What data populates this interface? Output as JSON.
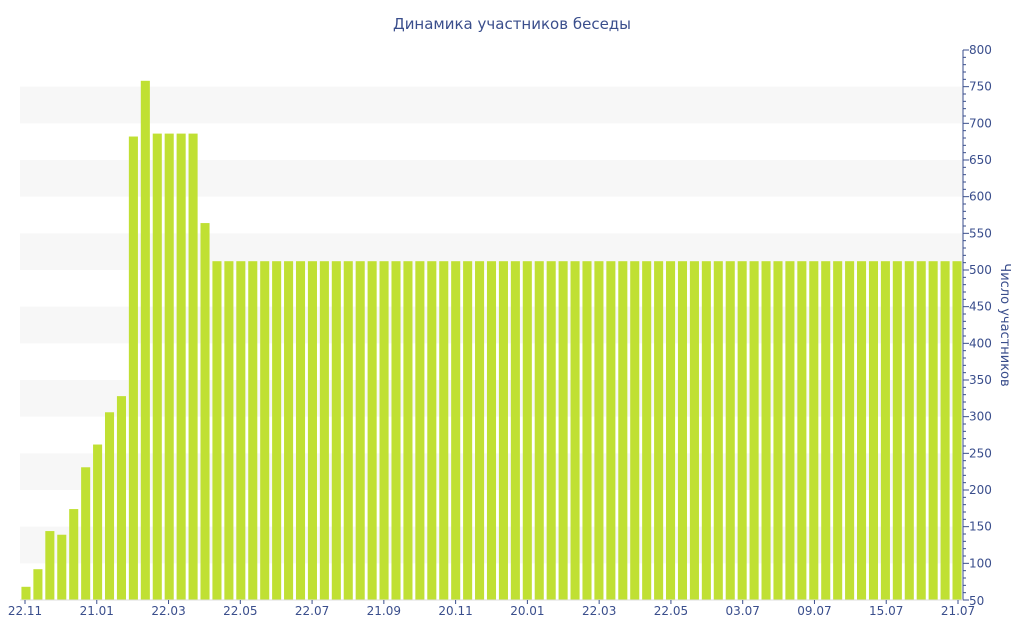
{
  "chart_data": {
    "type": "bar",
    "title": "Динамика участников беседы",
    "xlabel": "",
    "ylabel": "Число участников",
    "ylim": [
      50,
      800
    ],
    "yticks": [
      100,
      150,
      200,
      250,
      300,
      350,
      400,
      450,
      500,
      550,
      600,
      650,
      700,
      750,
      800
    ],
    "ytick_extra_label": "50",
    "xtick_labels": [
      "22.11",
      "21.01",
      "22.03",
      "22.05",
      "22.07",
      "21.09",
      "20.11",
      "20.01",
      "22.03",
      "22.05",
      "03.07",
      "09.07",
      "15.07",
      "21.07"
    ],
    "values": [
      68,
      92,
      144,
      139,
      174,
      231,
      262,
      306,
      328,
      682,
      758,
      686,
      686,
      686,
      686,
      564,
      512,
      512,
      512,
      512,
      512,
      512,
      512,
      512,
      512,
      512,
      512,
      512,
      512,
      512,
      512,
      512,
      512,
      512,
      512,
      512,
      512,
      512,
      512,
      512,
      512,
      512,
      512,
      512,
      512,
      512,
      512,
      512,
      512,
      512,
      512,
      512,
      512,
      512,
      512,
      512,
      512,
      512,
      512,
      512,
      512,
      512,
      512,
      512,
      512,
      512,
      512,
      512,
      512,
      512,
      512,
      512,
      512,
      512,
      512,
      512,
      512,
      512,
      512
    ],
    "bar_color": "#c0e033",
    "band_color": "#f7f7f7",
    "text_color": "#3a4e8c",
    "axis_side": "right",
    "grid": "alternating bands"
  }
}
